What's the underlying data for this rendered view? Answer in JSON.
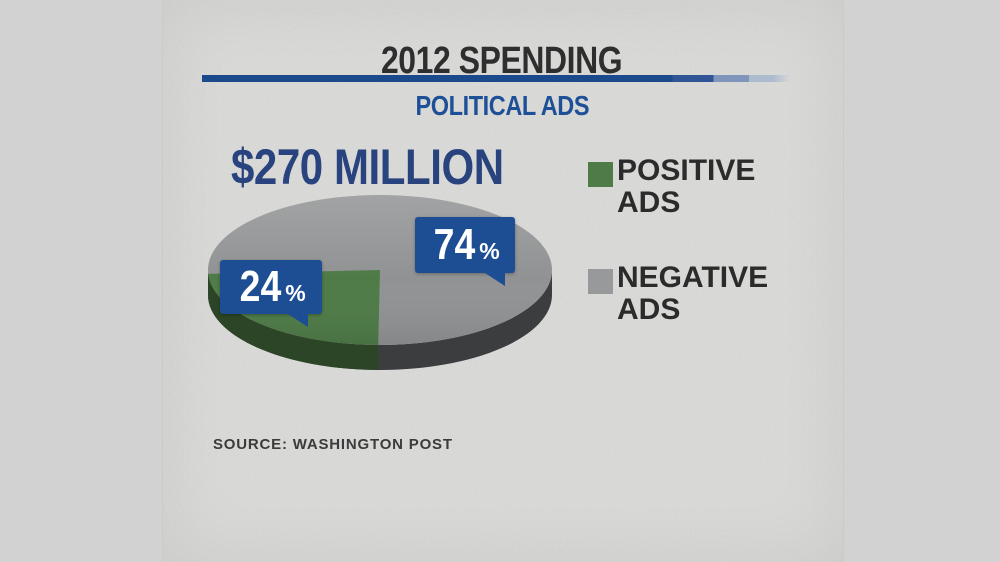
{
  "header": {
    "title": "2012 SPENDING",
    "subtitle": "POLITICAL ADS"
  },
  "total": {
    "label": "$270 MILLION"
  },
  "chart_data": {
    "type": "pie",
    "style": "3d-extruded",
    "title": "2012 SPENDING",
    "subtitle": "POLITICAL ADS",
    "total_label": "$270 MILLION",
    "slices": [
      {
        "label": "POSITIVE ADS",
        "value_pct": 24,
        "color": "#4e7b47",
        "side_color": "#2c4526"
      },
      {
        "label": "NEGATIVE ADS",
        "value_pct": 74,
        "color": "#909293",
        "side_color": "#3b3d3f"
      }
    ],
    "legend_position": "right",
    "source": "SOURCE: WASHINGTON POST"
  },
  "callouts": [
    {
      "value": "24",
      "unit": "%"
    },
    {
      "value": "74",
      "unit": "%"
    }
  ],
  "legend": {
    "items": [
      {
        "line1": "POSITIVE",
        "line2": "ADS",
        "swatch_color": "#4e7b47"
      },
      {
        "line1": "NEGATIVE",
        "line2": "ADS",
        "swatch_color": "#97999b"
      }
    ]
  },
  "source": {
    "text": "SOURCE: WASHINGTON POST"
  },
  "colors": {
    "accent_blue": "#1d4d92",
    "rule_blue": "#1a4a8c",
    "title_text": "#2e2e2e",
    "subtitle_text": "#1e5097",
    "total_text": "#29437e",
    "legend_text": "#2b2b2b",
    "source_text": "#3b3b3b",
    "callout_bg": "#1d4d92",
    "callout_text": "#ffffff",
    "background_side": "#d2d2d2",
    "background_panel": "#dcdcda"
  }
}
